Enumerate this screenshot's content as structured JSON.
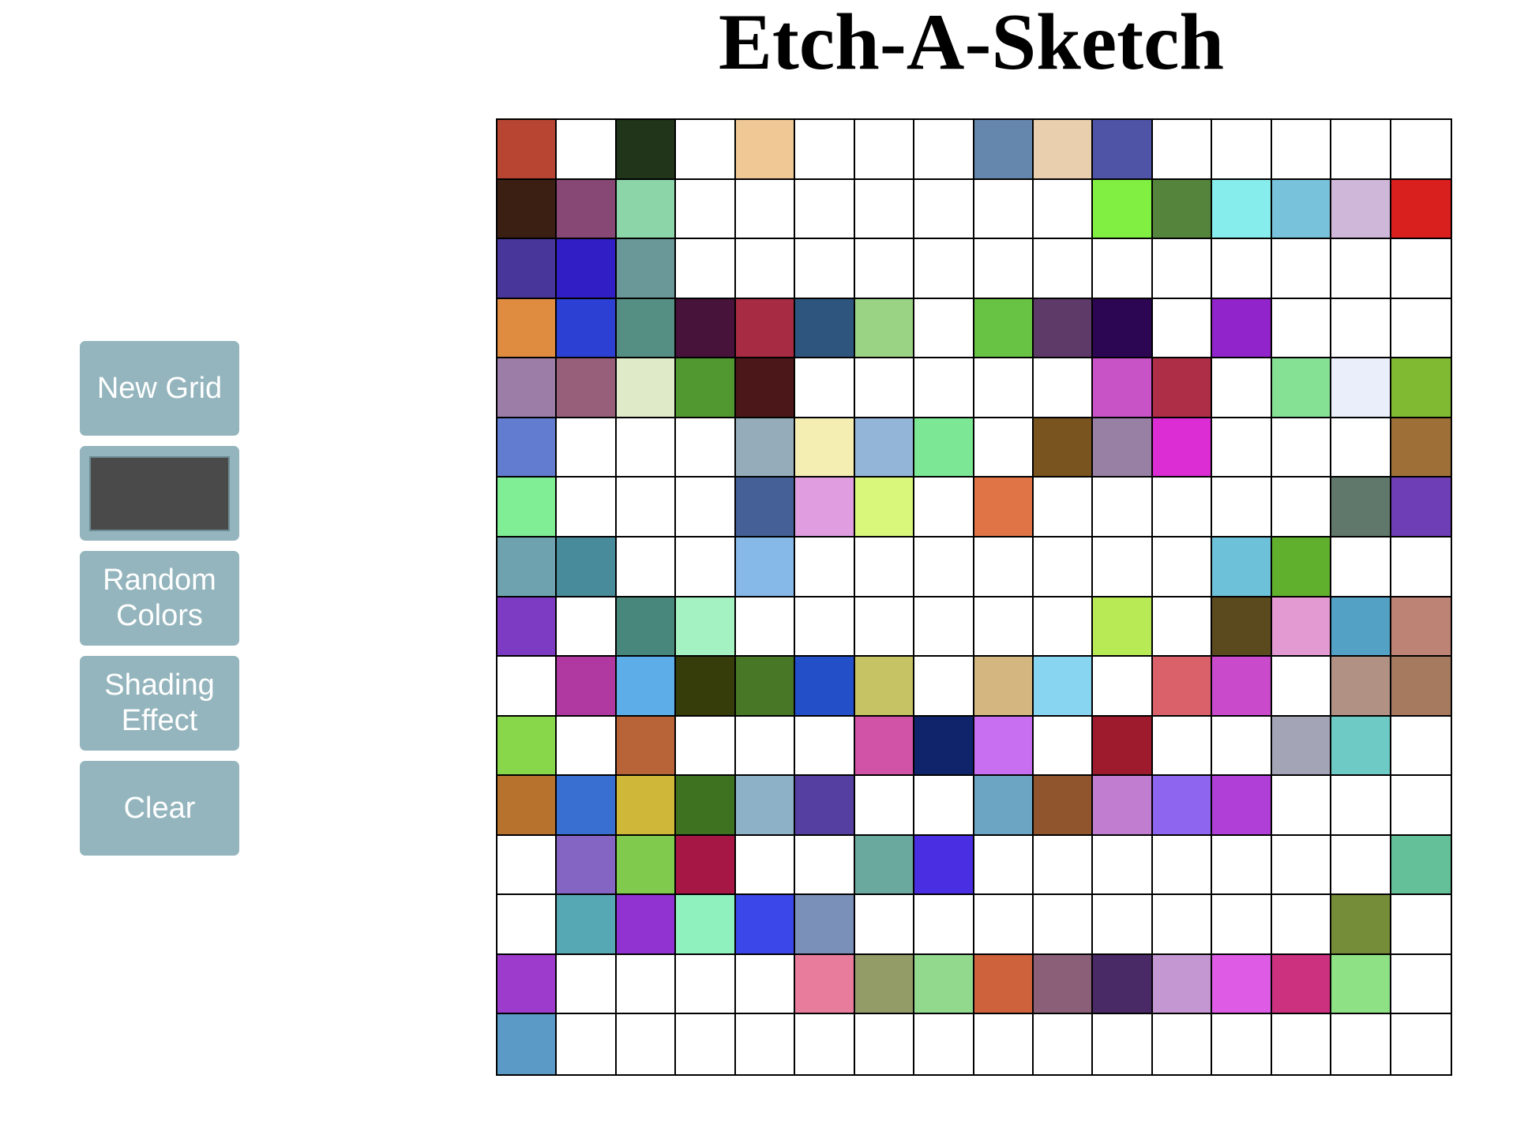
{
  "title": "Etch-A-Sketch",
  "controls": {
    "new_grid_label": "New Grid",
    "current_color": "#4a4a4a",
    "random_colors_label": "Random Colors",
    "shading_label": "Shading Effect",
    "clear_label": "Clear"
  },
  "grid": {
    "size": 16,
    "cells": [
      [
        "#b84432",
        "#ffffff",
        "#21351a",
        "#ffffff",
        "#efc895",
        "#ffffff",
        "#ffffff",
        "#ffffff",
        "#6687ad",
        "#eacfae",
        "#5054a7",
        "#ffffff",
        "#ffffff",
        "#ffffff",
        "#ffffff",
        "#ffffff"
      ],
      [
        "#3b1f13",
        "#884875",
        "#8cd5a8",
        "#ffffff",
        "#ffffff",
        "#ffffff",
        "#ffffff",
        "#ffffff",
        "#ffffff",
        "#ffffff",
        "#81ef41",
        "#55853d",
        "#87ecec",
        "#79c2db",
        "#cfb7da",
        "#da201e"
      ],
      [
        "#48369a",
        "#321ec5",
        "#6a9898",
        "#ffffff",
        "#ffffff",
        "#ffffff",
        "#ffffff",
        "#ffffff",
        "#ffffff",
        "#ffffff",
        "#ffffff",
        "#ffffff",
        "#ffffff",
        "#ffffff",
        "#ffffff",
        "#ffffff"
      ],
      [
        "#df8b40",
        "#2d40d4",
        "#558f84",
        "#47133b",
        "#a72b42",
        "#2e557e",
        "#9bd384",
        "#ffffff",
        "#68c243",
        "#5e3a69",
        "#2d0653",
        "#ffffff",
        "#9124ca",
        "#ffffff",
        "#ffffff",
        "#ffffff"
      ],
      [
        "#9b7da7",
        "#985f7a",
        "#dfeac9",
        "#519830",
        "#4c1719",
        "#ffffff",
        "#ffffff",
        "#ffffff",
        "#ffffff",
        "#ffffff",
        "#c853c7",
        "#ae2e47",
        "#ffffff",
        "#85e194",
        "#e9eefa",
        "#80b932"
      ],
      [
        "#627dcf",
        "#ffffff",
        "#ffffff",
        "#ffffff",
        "#95adba",
        "#f4eeb2",
        "#92b5d8",
        "#7ce795",
        "#ffffff",
        "#7a541e",
        "#9780a3",
        "#dc2cd4",
        "#ffffff",
        "#ffffff",
        "#ffffff",
        "#9e7038"
      ],
      [
        "#80ee95",
        "#ffffff",
        "#ffffff",
        "#ffffff",
        "#446097",
        "#e09ee0",
        "#d9f77b",
        "#ffffff",
        "#e17447",
        "#ffffff",
        "#ffffff",
        "#ffffff",
        "#ffffff",
        "#ffffff",
        "#60776c",
        "#6e3eb7"
      ],
      [
        "#6da2ae",
        "#488b9b",
        "#ffffff",
        "#ffffff",
        "#86b8e8",
        "#ffffff",
        "#ffffff",
        "#ffffff",
        "#ffffff",
        "#ffffff",
        "#ffffff",
        "#ffffff",
        "#6dc1d9",
        "#60b02e",
        "#ffffff",
        "#ffffff"
      ],
      [
        "#7d3ac2",
        "#ffffff",
        "#48877b",
        "#a4f2c1",
        "#ffffff",
        "#ffffff",
        "#ffffff",
        "#ffffff",
        "#ffffff",
        "#ffffff",
        "#b8ea55",
        "#ffffff",
        "#5c4a1f",
        "#e399d2",
        "#54a1c6",
        "#bd8375"
      ],
      [
        "#ffffff",
        "#b039a1",
        "#5daee8",
        "#363d0b",
        "#487726",
        "#234fc9",
        "#c6c364",
        "#ffffff",
        "#d3b680",
        "#88d5f2",
        "#ffffff",
        "#da616a",
        "#c94acb",
        "#ffffff",
        "#b09183",
        "#a67a5f"
      ],
      [
        "#88d74a",
        "#ffffff",
        "#b96338",
        "#ffffff",
        "#ffffff",
        "#ffffff",
        "#d053a7",
        "#10246b",
        "#c86ef0",
        "#ffffff",
        "#9e1a2d",
        "#ffffff",
        "#ffffff",
        "#a3a5b7",
        "#6ecac4",
        "#ffffff"
      ],
      [
        "#b7722e",
        "#396fd1",
        "#cfb73a",
        "#3e7220",
        "#8db2c8",
        "#553fa1",
        "#ffffff",
        "#ffffff",
        "#6ba5c3",
        "#90552c",
        "#c17dd0",
        "#8e65ef",
        "#b03fd7",
        "#ffffff",
        "#ffffff",
        "#ffffff"
      ],
      [
        "#ffffff",
        "#8465c4",
        "#80cb4d",
        "#a61746",
        "#ffffff",
        "#ffffff",
        "#6aa99e",
        "#4a2ee1",
        "#ffffff",
        "#ffffff",
        "#ffffff",
        "#ffffff",
        "#ffffff",
        "#ffffff",
        "#ffffff",
        "#63c098"
      ],
      [
        "#ffffff",
        "#57a8b5",
        "#9033d1",
        "#8ff2be",
        "#3b47e8",
        "#7a90b8",
        "#ffffff",
        "#ffffff",
        "#ffffff",
        "#ffffff",
        "#ffffff",
        "#ffffff",
        "#ffffff",
        "#ffffff",
        "#758d38",
        "#ffffff"
      ],
      [
        "#9d3ccc",
        "#ffffff",
        "#ffffff",
        "#ffffff",
        "#ffffff",
        "#e77c9c",
        "#939b67",
        "#92d88d",
        "#cd623c",
        "#8a5f77",
        "#4a2a66",
        "#c497d3",
        "#dd5be5",
        "#cc3180",
        "#8ee285",
        "#ffffff"
      ],
      [
        "#5b99c6",
        "#ffffff",
        "#ffffff",
        "#ffffff",
        "#ffffff",
        "#ffffff",
        "#ffffff",
        "#ffffff",
        "#ffffff",
        "#ffffff",
        "#ffffff",
        "#ffffff",
        "#ffffff",
        "#ffffff",
        "#ffffff",
        "#ffffff"
      ]
    ]
  }
}
